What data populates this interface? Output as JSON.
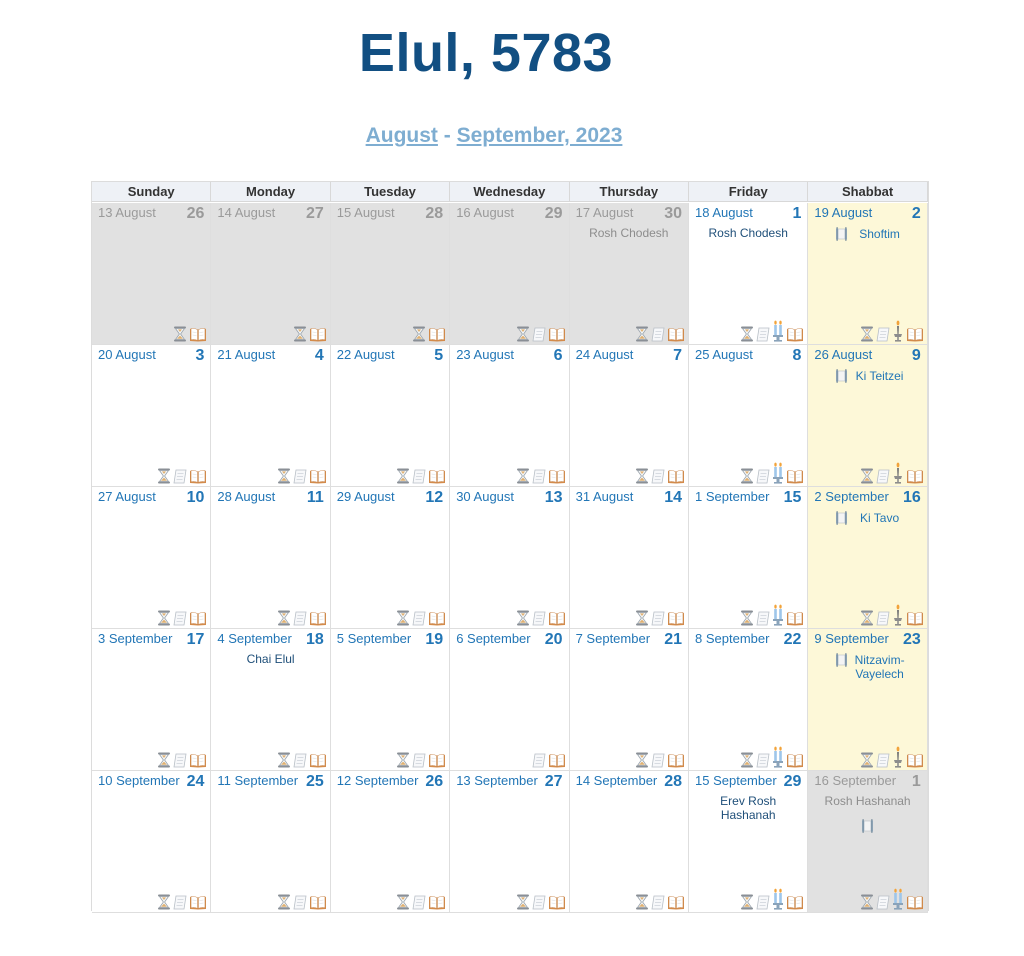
{
  "title": "Elul, 5783",
  "subtitle": {
    "month1": "August",
    "separator": "-",
    "month2": "September, 2023"
  },
  "days_of_week": [
    "Sunday",
    "Monday",
    "Tuesday",
    "Wednesday",
    "Thursday",
    "Friday",
    "Shabbat"
  ],
  "weeks": [
    [
      {
        "greg": "13 August",
        "heb": "26",
        "outside": true,
        "icons": [
          "hourglass",
          "book"
        ]
      },
      {
        "greg": "14 August",
        "heb": "27",
        "outside": true,
        "icons": [
          "hourglass",
          "book"
        ]
      },
      {
        "greg": "15 August",
        "heb": "28",
        "outside": true,
        "icons": [
          "hourglass",
          "book"
        ]
      },
      {
        "greg": "16 August",
        "heb": "29",
        "outside": true,
        "icons": [
          "hourglass",
          "paper",
          "book"
        ]
      },
      {
        "greg": "17 August",
        "heb": "30",
        "outside": true,
        "event": "Rosh Chodesh",
        "icons": [
          "hourglass",
          "paper",
          "book"
        ]
      },
      {
        "greg": "18 August",
        "heb": "1",
        "event": "Rosh Chodesh",
        "icons": [
          "hourglass",
          "paper",
          "candles",
          "book"
        ]
      },
      {
        "greg": "19 August",
        "heb": "2",
        "shabbat": true,
        "parsha": "Shoftim",
        "icons": [
          "hourglass",
          "paper",
          "havdalah",
          "book"
        ]
      }
    ],
    [
      {
        "greg": "20 August",
        "heb": "3",
        "icons": [
          "hourglass",
          "paper",
          "book"
        ]
      },
      {
        "greg": "21 August",
        "heb": "4",
        "icons": [
          "hourglass",
          "paper",
          "book"
        ]
      },
      {
        "greg": "22 August",
        "heb": "5",
        "icons": [
          "hourglass",
          "paper",
          "book"
        ]
      },
      {
        "greg": "23 August",
        "heb": "6",
        "icons": [
          "hourglass",
          "paper",
          "book"
        ]
      },
      {
        "greg": "24 August",
        "heb": "7",
        "icons": [
          "hourglass",
          "paper",
          "book"
        ]
      },
      {
        "greg": "25 August",
        "heb": "8",
        "icons": [
          "hourglass",
          "paper",
          "candles",
          "book"
        ]
      },
      {
        "greg": "26 August",
        "heb": "9",
        "shabbat": true,
        "parsha": "Ki Teitzei",
        "icons": [
          "hourglass",
          "paper",
          "havdalah",
          "book"
        ]
      }
    ],
    [
      {
        "greg": "27 August",
        "heb": "10",
        "icons": [
          "hourglass",
          "paper",
          "book"
        ]
      },
      {
        "greg": "28 August",
        "heb": "11",
        "icons": [
          "hourglass",
          "paper",
          "book"
        ]
      },
      {
        "greg": "29 August",
        "heb": "12",
        "icons": [
          "hourglass",
          "paper",
          "book"
        ]
      },
      {
        "greg": "30 August",
        "heb": "13",
        "icons": [
          "hourglass",
          "paper",
          "book"
        ]
      },
      {
        "greg": "31 August",
        "heb": "14",
        "icons": [
          "hourglass",
          "paper",
          "book"
        ]
      },
      {
        "greg": "1 September",
        "heb": "15",
        "icons": [
          "hourglass",
          "paper",
          "candles",
          "book"
        ]
      },
      {
        "greg": "2 September",
        "heb": "16",
        "shabbat": true,
        "parsha": "Ki Tavo",
        "icons": [
          "hourglass",
          "paper",
          "havdalah",
          "book"
        ]
      }
    ],
    [
      {
        "greg": "3 September",
        "heb": "17",
        "icons": [
          "hourglass",
          "paper",
          "book"
        ]
      },
      {
        "greg": "4 September",
        "heb": "18",
        "event": "Chai Elul",
        "icons": [
          "hourglass",
          "paper",
          "book"
        ]
      },
      {
        "greg": "5 September",
        "heb": "19",
        "icons": [
          "hourglass",
          "paper",
          "book"
        ]
      },
      {
        "greg": "6 September",
        "heb": "20",
        "icons": [
          "paper",
          "book"
        ]
      },
      {
        "greg": "7 September",
        "heb": "21",
        "icons": [
          "hourglass",
          "paper",
          "book"
        ]
      },
      {
        "greg": "8 September",
        "heb": "22",
        "icons": [
          "hourglass",
          "paper",
          "candles",
          "book"
        ]
      },
      {
        "greg": "9 September",
        "heb": "23",
        "shabbat": true,
        "parsha": "Nitzavim-Vayelech",
        "icons": [
          "hourglass",
          "paper",
          "havdalah",
          "book"
        ]
      }
    ],
    [
      {
        "greg": "10 September",
        "heb": "24",
        "icons": [
          "hourglass",
          "paper",
          "book"
        ]
      },
      {
        "greg": "11 September",
        "heb": "25",
        "icons": [
          "hourglass",
          "paper",
          "book"
        ]
      },
      {
        "greg": "12 September",
        "heb": "26",
        "icons": [
          "hourglass",
          "paper",
          "book"
        ]
      },
      {
        "greg": "13 September",
        "heb": "27",
        "icons": [
          "hourglass",
          "paper",
          "book"
        ]
      },
      {
        "greg": "14 September",
        "heb": "28",
        "icons": [
          "hourglass",
          "paper",
          "book"
        ]
      },
      {
        "greg": "15 September",
        "heb": "29",
        "event": "Erev Rosh Hashanah",
        "icons": [
          "hourglass",
          "paper",
          "candles",
          "book"
        ]
      },
      {
        "greg": "16 September",
        "heb": "1",
        "outside": true,
        "event": "Rosh Hashanah",
        "scroll": true,
        "icons": [
          "hourglass",
          "paper",
          "candles",
          "book"
        ]
      }
    ]
  ],
  "colors": {
    "title": "#124f82",
    "link": "#7eadd1",
    "day_text": "#2276b6",
    "outside_bg": "#e1e1e1",
    "shabbat_bg": "#fdf8d8"
  }
}
